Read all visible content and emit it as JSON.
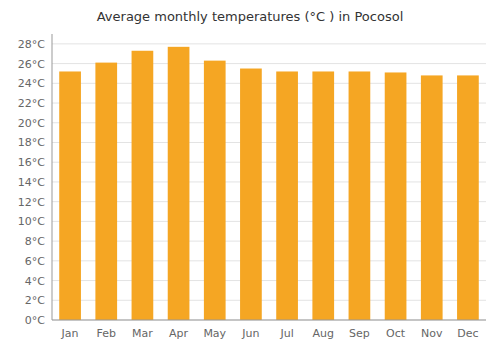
{
  "chart_data": {
    "type": "bar",
    "title": "Average monthly temperatures (°C ) in Pocosol",
    "categories": [
      "Jan",
      "Feb",
      "Mar",
      "Apr",
      "May",
      "Jun",
      "Jul",
      "Aug",
      "Sep",
      "Oct",
      "Nov",
      "Dec"
    ],
    "values": [
      25.2,
      26.1,
      27.3,
      27.7,
      26.3,
      25.5,
      25.2,
      25.2,
      25.2,
      25.1,
      24.8,
      24.8
    ],
    "color": "#F5A623",
    "ylim": [
      0,
      29
    ],
    "yticks": [
      {
        "value": 0,
        "label": "0°C"
      },
      {
        "value": 2,
        "label": "2°C"
      },
      {
        "value": 4,
        "label": "4°C"
      },
      {
        "value": 6,
        "label": "6°C"
      },
      {
        "value": 8,
        "label": "8°C"
      },
      {
        "value": 10,
        "label": "10°C"
      },
      {
        "value": 12,
        "label": "12°C"
      },
      {
        "value": 14,
        "label": "14°C"
      },
      {
        "value": 16,
        "label": "16°C"
      },
      {
        "value": 18,
        "label": "18°C"
      },
      {
        "value": 20,
        "label": "20°C"
      },
      {
        "value": 22,
        "label": "22°C"
      },
      {
        "value": 24,
        "label": "24°C"
      },
      {
        "value": 26,
        "label": "26°C"
      },
      {
        "value": 28,
        "label": "28°C"
      }
    ],
    "grid": true
  }
}
